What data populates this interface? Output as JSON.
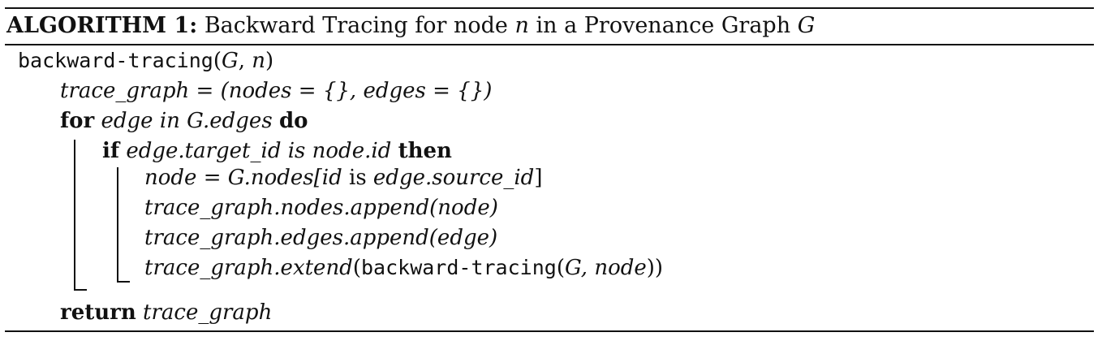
{
  "caption": {
    "label": "ALGORITHM 1:",
    "text_before": "Backward Tracing for node ",
    "var_n": "n",
    "text_mid": " in a Provenance Graph ",
    "var_G": "G"
  },
  "lines": {
    "l1": {
      "func": "backward-tracing",
      "open": "(",
      "G": "G",
      "comma": ", ",
      "n": "n",
      "close": ")"
    },
    "l2": {
      "expr": "trace_graph = (nodes = {}, edges = {})"
    },
    "l3": {
      "kw_for": "for",
      "expr": "edge in G.edges",
      "kw_do": "do"
    },
    "l4": {
      "kw_if": "if",
      "expr": "edge.target_id is node.id",
      "kw_then": "then"
    },
    "l5": {
      "a": "node = G.nodes[",
      "b": "id",
      "c": " is ",
      "d": "edge.source_id",
      "e": "]"
    },
    "l6": {
      "expr": "trace_graph.nodes.append(node)"
    },
    "l7": {
      "expr": "trace_graph.edges.append(edge)"
    },
    "l8": {
      "a": "trace_graph.extend",
      "b": "(",
      "func": "backward-tracing",
      "c": "(",
      "d": "G, node",
      "e": "))"
    },
    "l9": {
      "kw_return": "return",
      "expr": "trace_graph"
    }
  }
}
